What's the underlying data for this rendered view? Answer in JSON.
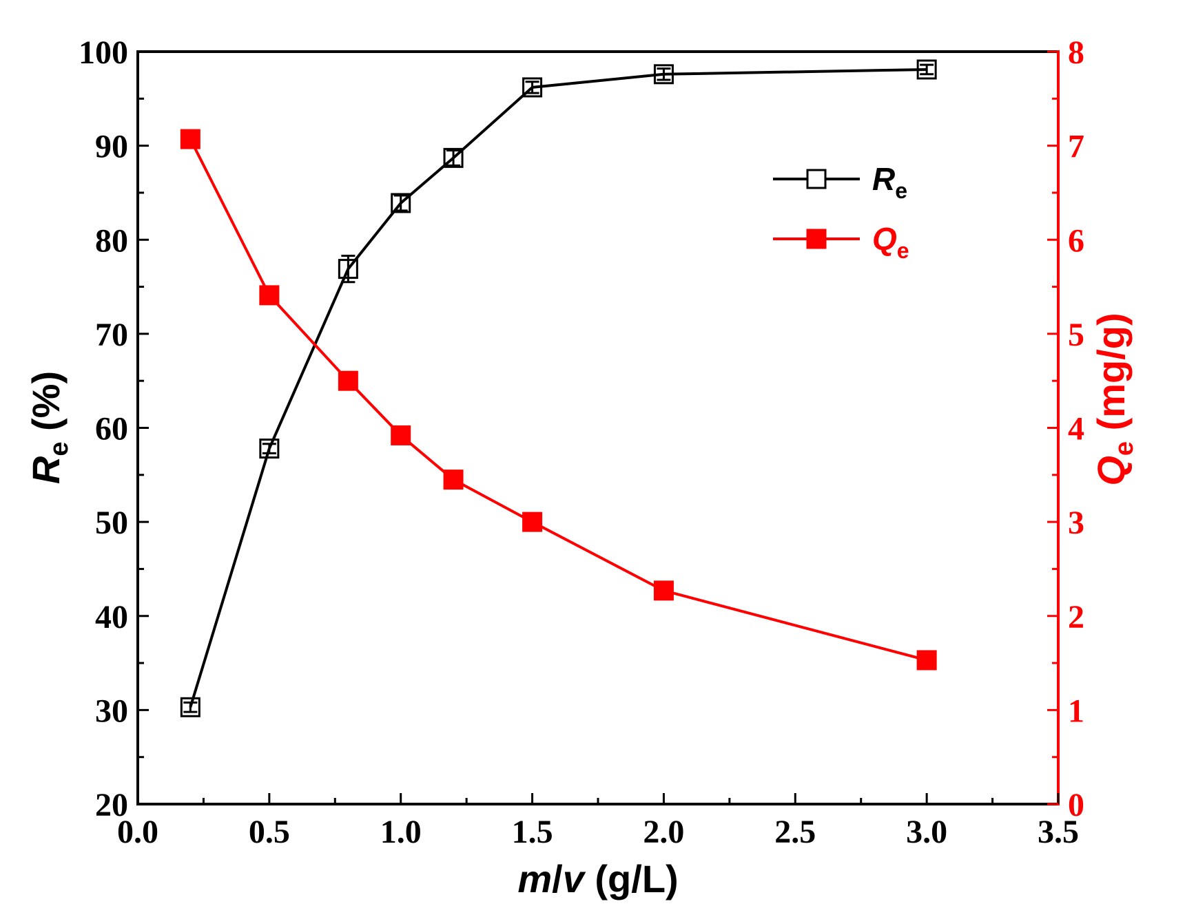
{
  "chart_data": {
    "type": "line",
    "x_axis": {
      "title_italic": "m",
      "title_sep": "/",
      "title_italic2": "v",
      "title_rest": " (g/L)",
      "range": [
        0.0,
        3.5
      ],
      "ticks": [
        "0.0",
        "0.5",
        "1.0",
        "1.5",
        "2.0",
        "2.5",
        "3.0",
        "3.5"
      ],
      "tick_values": [
        0.0,
        0.5,
        1.0,
        1.5,
        2.0,
        2.5,
        3.0,
        3.5
      ]
    },
    "y_left": {
      "title_main": "R",
      "title_sub": "e",
      "title_rest": " (%)",
      "range": [
        20,
        100
      ],
      "ticks": [
        "20",
        "30",
        "40",
        "50",
        "60",
        "70",
        "80",
        "90",
        "100"
      ],
      "tick_values": [
        20,
        30,
        40,
        50,
        60,
        70,
        80,
        90,
        100
      ]
    },
    "y_right": {
      "title_main": "Q",
      "title_sub": "e",
      "title_rest": " (mg/g)",
      "range": [
        0,
        8
      ],
      "ticks": [
        "0",
        "1",
        "2",
        "3",
        "4",
        "5",
        "6",
        "7",
        "8"
      ],
      "tick_values": [
        0,
        1,
        2,
        3,
        4,
        5,
        6,
        7,
        8
      ]
    },
    "series": [
      {
        "name": "Re",
        "label_main": "R",
        "label_sub": "e",
        "axis": "left",
        "marker": "open-square",
        "x": [
          0.2,
          0.5,
          0.8,
          1.0,
          1.2,
          1.5,
          2.0,
          3.0
        ],
        "values": [
          30.3,
          57.8,
          76.9,
          83.9,
          88.7,
          96.2,
          97.6,
          98.1
        ],
        "errors": [
          0.5,
          0.5,
          1.4,
          0.8,
          0.8,
          0.6,
          0.6,
          0.5
        ]
      },
      {
        "name": "Qe",
        "label_main": "Q",
        "label_sub": "e",
        "axis": "right",
        "marker": "filled-square",
        "x": [
          0.2,
          0.5,
          0.8,
          1.0,
          1.2,
          1.5,
          2.0,
          3.0
        ],
        "values": [
          7.07,
          5.41,
          4.5,
          3.92,
          3.45,
          3.0,
          2.27,
          1.53
        ],
        "errors": [
          0,
          0,
          0,
          0,
          0,
          0,
          0,
          0
        ]
      }
    ],
    "legend_position": "top-right",
    "colors": {
      "left": "#000000",
      "right": "#ff0000"
    }
  }
}
